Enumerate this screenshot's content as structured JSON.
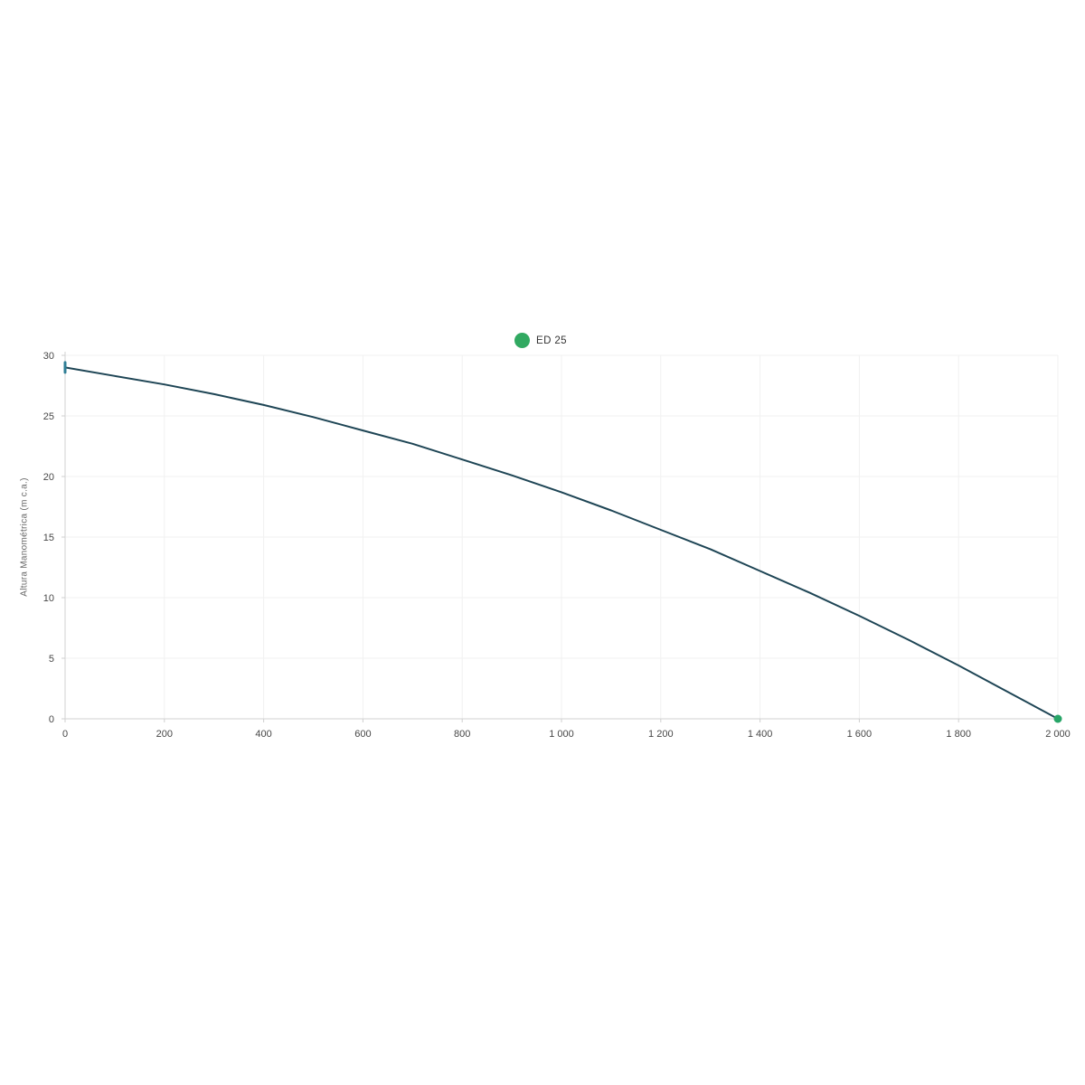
{
  "page": {
    "background": "#ffffff"
  },
  "chart_data": {
    "type": "line",
    "title": "",
    "xlabel": "",
    "ylabel": "Altura Manométrica (m c.a.)",
    "xlim": [
      0,
      2000
    ],
    "ylim": [
      0,
      30
    ],
    "x_ticks": [
      0,
      200,
      400,
      600,
      800,
      1000,
      1200,
      1400,
      1600,
      1800,
      2000
    ],
    "x_tick_labels": [
      "0",
      "200",
      "400",
      "600",
      "800",
      "1 000",
      "1 200",
      "1 400",
      "1 600",
      "1 800",
      "2 000"
    ],
    "y_ticks": [
      0,
      5,
      10,
      15,
      20,
      25,
      30
    ],
    "y_tick_labels": [
      "0",
      "5",
      "10",
      "15",
      "20",
      "25",
      "30"
    ],
    "grid": true,
    "legend_position": "top-center",
    "series": [
      {
        "name": "ED 25",
        "color": "#1e4555",
        "legend_dot_color": "#31a961",
        "start_marker": "vertical-tick",
        "start_marker_color": "#2e7e95",
        "end_marker": "dot",
        "end_marker_color": "#27a567",
        "x": [
          0,
          100,
          200,
          300,
          400,
          500,
          600,
          700,
          800,
          900,
          1000,
          1100,
          1200,
          1300,
          1400,
          1500,
          1600,
          1700,
          1800,
          1900,
          2000
        ],
        "y": [
          29.0,
          28.3,
          27.6,
          26.8,
          25.9,
          24.9,
          23.8,
          22.7,
          21.4,
          20.1,
          18.7,
          17.2,
          15.6,
          14.0,
          12.2,
          10.4,
          8.5,
          6.5,
          4.4,
          2.2,
          0.0
        ]
      }
    ],
    "colors": {
      "grid": "#f1f1f1",
      "axis": "#d9d9d9",
      "tick": "#cfcfcf",
      "tick_text": "#474747"
    }
  }
}
